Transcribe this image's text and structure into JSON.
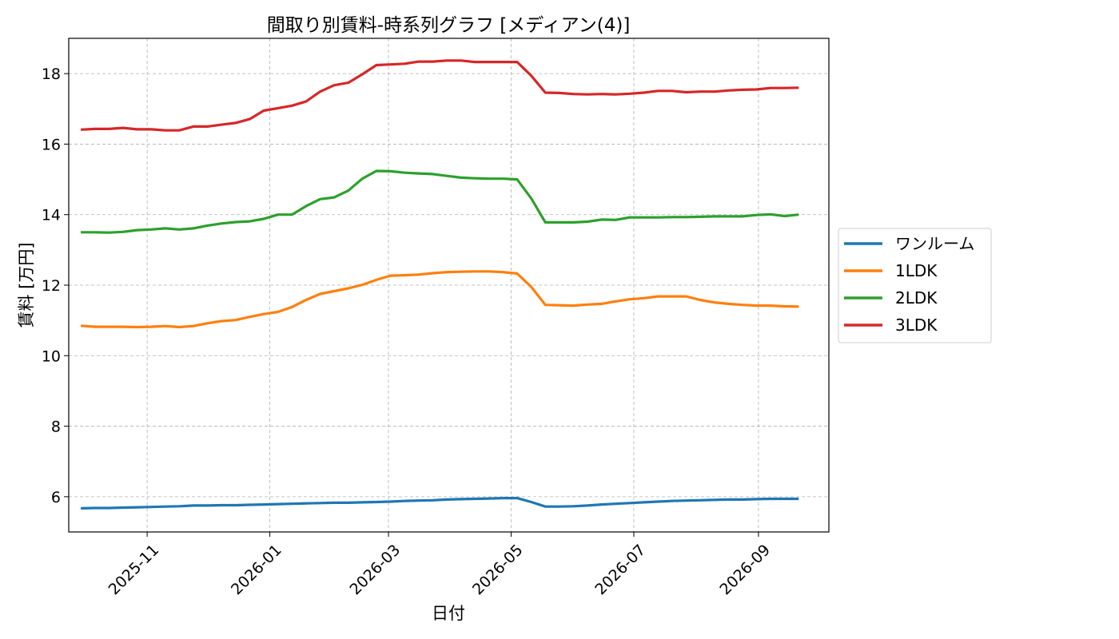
{
  "chart_data": {
    "type": "line",
    "title": "間取り別賃料-時系列グラフ [メディアン(4)]",
    "xlabel": "日付",
    "ylabel": "賃料 [万円]",
    "ylim": [
      5,
      19
    ],
    "xlim": [
      "2025-09-23",
      "2026-10-06"
    ],
    "grid": true,
    "legend_position": "right",
    "x_ticks": [
      "2025-11",
      "2026-01",
      "2026-03",
      "2026-05",
      "2026-07",
      "2026-09"
    ],
    "y_ticks": [
      6,
      8,
      10,
      12,
      14,
      16,
      18
    ],
    "x": [
      "2025-09-29",
      "2025-10-06",
      "2025-10-13",
      "2025-10-20",
      "2025-10-27",
      "2025-11-03",
      "2025-11-10",
      "2025-11-17",
      "2025-11-24",
      "2025-12-01",
      "2025-12-08",
      "2025-12-15",
      "2025-12-22",
      "2025-12-29",
      "2026-01-05",
      "2026-01-12",
      "2026-01-19",
      "2026-01-26",
      "2026-02-02",
      "2026-02-09",
      "2026-02-16",
      "2026-02-23",
      "2026-03-02",
      "2026-03-09",
      "2026-03-16",
      "2026-03-23",
      "2026-03-30",
      "2026-04-06",
      "2026-04-13",
      "2026-04-20",
      "2026-04-27",
      "2026-05-04",
      "2026-05-11",
      "2026-05-18",
      "2026-05-25",
      "2026-06-01",
      "2026-06-08",
      "2026-06-15",
      "2026-06-22",
      "2026-06-29",
      "2026-07-06",
      "2026-07-13",
      "2026-07-20",
      "2026-07-27",
      "2026-08-03",
      "2026-08-10",
      "2026-08-17",
      "2026-08-24",
      "2026-08-31",
      "2026-09-07",
      "2026-09-14",
      "2026-09-21"
    ],
    "series": [
      {
        "name": "ワンルーム",
        "color": "#1f77b4",
        "values": [
          5.67,
          5.68,
          5.68,
          5.69,
          5.7,
          5.71,
          5.72,
          5.73,
          5.75,
          5.75,
          5.76,
          5.76,
          5.77,
          5.78,
          5.79,
          5.8,
          5.81,
          5.82,
          5.83,
          5.83,
          5.84,
          5.85,
          5.86,
          5.88,
          5.89,
          5.9,
          5.92,
          5.93,
          5.94,
          5.95,
          5.96,
          5.96,
          5.85,
          5.72,
          5.72,
          5.73,
          5.75,
          5.78,
          5.8,
          5.82,
          5.84,
          5.86,
          5.88,
          5.89,
          5.9,
          5.91,
          5.92,
          5.92,
          5.93,
          5.94,
          5.94,
          5.94
        ]
      },
      {
        "name": "1LDK",
        "color": "#ff7f0e",
        "values": [
          10.85,
          10.82,
          10.82,
          10.82,
          10.81,
          10.82,
          10.84,
          10.81,
          10.84,
          10.92,
          10.98,
          11.01,
          11.1,
          11.18,
          11.24,
          11.38,
          11.58,
          11.75,
          11.83,
          11.91,
          12.01,
          12.15,
          12.27,
          12.28,
          12.3,
          12.34,
          12.37,
          12.38,
          12.39,
          12.39,
          12.37,
          12.33,
          11.95,
          11.44,
          11.43,
          11.42,
          11.45,
          11.47,
          11.54,
          11.6,
          11.63,
          11.68,
          11.68,
          11.68,
          11.58,
          11.51,
          11.47,
          11.44,
          11.42,
          11.42,
          11.4,
          11.39
        ]
      },
      {
        "name": "2LDK",
        "color": "#2ca02c",
        "values": [
          13.5,
          13.5,
          13.49,
          13.51,
          13.56,
          13.58,
          13.61,
          13.58,
          13.61,
          13.69,
          13.75,
          13.79,
          13.81,
          13.88,
          14.0,
          14.0,
          14.24,
          14.44,
          14.49,
          14.68,
          15.02,
          15.24,
          15.23,
          15.19,
          15.17,
          15.15,
          15.1,
          15.05,
          15.03,
          15.02,
          15.02,
          15.0,
          14.46,
          13.78,
          13.78,
          13.78,
          13.8,
          13.86,
          13.85,
          13.92,
          13.92,
          13.92,
          13.93,
          13.93,
          13.94,
          13.95,
          13.95,
          13.95,
          13.99,
          14.01,
          13.96,
          14.0
        ]
      },
      {
        "name": "3LDK",
        "color": "#d62728",
        "values": [
          16.41,
          16.43,
          16.43,
          16.46,
          16.42,
          16.42,
          16.39,
          16.39,
          16.5,
          16.5,
          16.55,
          16.6,
          16.71,
          16.95,
          17.02,
          17.09,
          17.21,
          17.49,
          17.67,
          17.74,
          17.98,
          18.24,
          18.26,
          18.28,
          18.34,
          18.34,
          18.37,
          18.37,
          18.33,
          18.33,
          18.33,
          18.33,
          17.94,
          17.46,
          17.45,
          17.42,
          17.41,
          17.42,
          17.41,
          17.43,
          17.46,
          17.51,
          17.51,
          17.47,
          17.49,
          17.49,
          17.52,
          17.54,
          17.55,
          17.59,
          17.59,
          17.6
        ]
      }
    ]
  }
}
